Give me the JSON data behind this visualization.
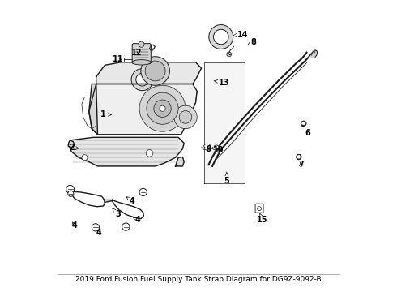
{
  "title": "2019 Ford Fusion Fuel Supply Tank Strap Diagram for DG9Z-9092-B",
  "bg_color": "#ffffff",
  "fig_width": 4.9,
  "fig_height": 3.6,
  "dpi": 100,
  "font_size": 7,
  "line_color": "#1a1a1a",
  "text_color": "#000000",
  "title_fontsize": 6.5,
  "lw_main": 1.0,
  "lw_thin": 0.5,
  "lw_heavy": 1.5,
  "label_positions": {
    "1": [
      0.17,
      0.61,
      0.2,
      0.608
    ],
    "2": [
      0.06,
      0.495,
      0.095,
      0.49
    ],
    "3": [
      0.22,
      0.265,
      0.2,
      0.285
    ],
    "4a": [
      0.27,
      0.31,
      0.248,
      0.325
    ],
    "4b": [
      0.29,
      0.245,
      0.27,
      0.255
    ],
    "4c": [
      0.07,
      0.225,
      0.062,
      0.238
    ],
    "4d": [
      0.155,
      0.2,
      0.143,
      0.215
    ],
    "5": [
      0.598,
      0.38,
      0.598,
      0.41
    ],
    "6": [
      0.88,
      0.545,
      0.87,
      0.562
    ],
    "7": [
      0.855,
      0.435,
      0.852,
      0.452
    ],
    "8": [
      0.69,
      0.86,
      0.668,
      0.848
    ],
    "9": [
      0.535,
      0.49,
      0.53,
      0.505
    ],
    "10": [
      0.57,
      0.487,
      0.562,
      0.502
    ],
    "11": [
      0.22,
      0.8,
      0.242,
      0.8
    ],
    "12": [
      0.285,
      0.822,
      0.302,
      0.812
    ],
    "13": [
      0.588,
      0.72,
      0.553,
      0.726
    ],
    "14": [
      0.655,
      0.885,
      0.61,
      0.882
    ],
    "15": [
      0.722,
      0.245,
      0.712,
      0.268
    ]
  }
}
